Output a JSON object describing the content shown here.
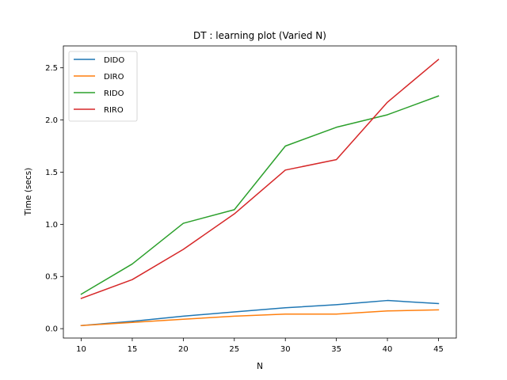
{
  "chart_data": {
    "type": "line",
    "title": "DT : learning plot (Varied N)",
    "xlabel": "N",
    "ylabel": "Time (secs)",
    "x": [
      10,
      15,
      20,
      25,
      30,
      35,
      40,
      45
    ],
    "xticks": [
      "10",
      "15",
      "20",
      "25",
      "30",
      "35",
      "40",
      "45"
    ],
    "yticks": [
      "0.0",
      "0.5",
      "1.0",
      "1.5",
      "2.0",
      "2.5"
    ],
    "xlim": [
      8.25,
      46.75
    ],
    "ylim": [
      -0.09,
      2.71
    ],
    "grid": false,
    "legend_position": "top-left",
    "series": [
      {
        "name": "DIDO",
        "color": "#1f77b4",
        "values": [
          0.03,
          0.07,
          0.12,
          0.16,
          0.2,
          0.23,
          0.27,
          0.24
        ]
      },
      {
        "name": "DIRO",
        "color": "#ff7f0e",
        "values": [
          0.03,
          0.06,
          0.09,
          0.12,
          0.14,
          0.14,
          0.17,
          0.18
        ]
      },
      {
        "name": "RIDO",
        "color": "#2ca02c",
        "values": [
          0.33,
          0.62,
          1.01,
          1.14,
          1.75,
          1.93,
          2.05,
          2.23
        ]
      },
      {
        "name": "RIRO",
        "color": "#d62728",
        "values": [
          0.29,
          0.47,
          0.76,
          1.1,
          1.52,
          1.62,
          2.17,
          2.58
        ]
      }
    ]
  }
}
